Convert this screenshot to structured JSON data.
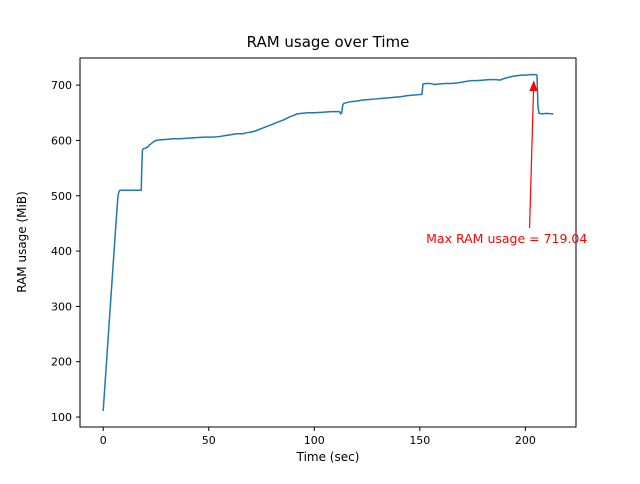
{
  "chart_data": {
    "type": "line",
    "title": "RAM usage over Time",
    "xlabel": "Time (sec)",
    "ylabel": "RAM usage (MiB)",
    "xlim": [
      -11,
      224
    ],
    "ylim": [
      82,
      749
    ],
    "xticks": [
      0,
      50,
      100,
      150,
      200
    ],
    "yticks": [
      100,
      200,
      300,
      400,
      500,
      600,
      700
    ],
    "line_color": "#1f77b4",
    "frame_color": "#000000",
    "points": [
      [
        0,
        112
      ],
      [
        1,
        168
      ],
      [
        2,
        224
      ],
      [
        3,
        280
      ],
      [
        4,
        336
      ],
      [
        5,
        392
      ],
      [
        6,
        448
      ],
      [
        7,
        500
      ],
      [
        7.5,
        508
      ],
      [
        8,
        510
      ],
      [
        18,
        510
      ],
      [
        18.3,
        555
      ],
      [
        18.6,
        583
      ],
      [
        19,
        585
      ],
      [
        20,
        586
      ],
      [
        21,
        588
      ],
      [
        22,
        592
      ],
      [
        23,
        595
      ],
      [
        24,
        598
      ],
      [
        25,
        600
      ],
      [
        27,
        601
      ],
      [
        30,
        602
      ],
      [
        33,
        603
      ],
      [
        36,
        603
      ],
      [
        40,
        604
      ],
      [
        44,
        605
      ],
      [
        48,
        606
      ],
      [
        52,
        606
      ],
      [
        55,
        607
      ],
      [
        58,
        609
      ],
      [
        60,
        610
      ],
      [
        63,
        612
      ],
      [
        66,
        612
      ],
      [
        68,
        614
      ],
      [
        70,
        615
      ],
      [
        72,
        617
      ],
      [
        74,
        620
      ],
      [
        76,
        623
      ],
      [
        78,
        626
      ],
      [
        80,
        629
      ],
      [
        82,
        632
      ],
      [
        84,
        635
      ],
      [
        86,
        638
      ],
      [
        88,
        642
      ],
      [
        90,
        645
      ],
      [
        92,
        648
      ],
      [
        94,
        649
      ],
      [
        97,
        650
      ],
      [
        100,
        650
      ],
      [
        104,
        651
      ],
      [
        108,
        652
      ],
      [
        112,
        652
      ],
      [
        112.5,
        648
      ],
      [
        113,
        650
      ],
      [
        113.5,
        664
      ],
      [
        114,
        667
      ],
      [
        115,
        668
      ],
      [
        117,
        670
      ],
      [
        120,
        671
      ],
      [
        123,
        673
      ],
      [
        126,
        674
      ],
      [
        129,
        675
      ],
      [
        132,
        676
      ],
      [
        135,
        677
      ],
      [
        138,
        678
      ],
      [
        141,
        679
      ],
      [
        144,
        681
      ],
      [
        147,
        682
      ],
      [
        150,
        683
      ],
      [
        151,
        683
      ],
      [
        151.5,
        702
      ],
      [
        153,
        703
      ],
      [
        155,
        703
      ],
      [
        157,
        701
      ],
      [
        159,
        702
      ],
      [
        162,
        703
      ],
      [
        165,
        703
      ],
      [
        168,
        704
      ],
      [
        171,
        706
      ],
      [
        174,
        708
      ],
      [
        177,
        708
      ],
      [
        180,
        709
      ],
      [
        183,
        710
      ],
      [
        186,
        710
      ],
      [
        188,
        709
      ],
      [
        190,
        712
      ],
      [
        192,
        714
      ],
      [
        194,
        716
      ],
      [
        196,
        717
      ],
      [
        198,
        718
      ],
      [
        200,
        718
      ],
      [
        202,
        719
      ],
      [
        204,
        719.04
      ],
      [
        205,
        719
      ],
      [
        205.5,
        718
      ],
      [
        206,
        660
      ],
      [
        206.5,
        649
      ],
      [
        208,
        648
      ],
      [
        210,
        649
      ],
      [
        213,
        648
      ]
    ],
    "annotation": {
      "text": "Max RAM usage = 719.04",
      "color": "#ff0000",
      "xy": [
        204,
        719.04
      ],
      "text_xy": [
        153,
        415
      ],
      "tail_xy": [
        202,
        442
      ]
    }
  }
}
